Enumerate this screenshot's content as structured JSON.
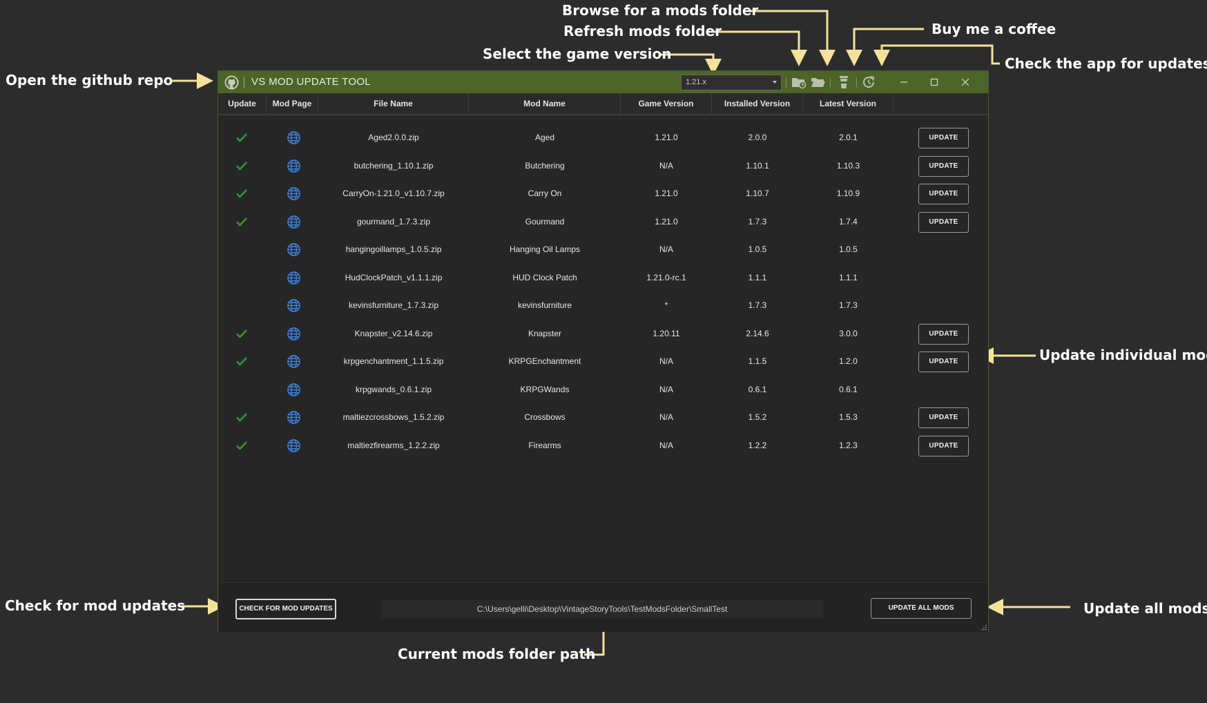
{
  "annotations": {
    "github": "Open the github repo",
    "game_version": "Select the game version",
    "refresh": "Refresh mods folder",
    "browse": "Browse for a mods folder",
    "coffee": "Buy me a coffee",
    "app_updates": "Check the app for updates",
    "individual": "Update individual mod",
    "check_mods": "Check for mod updates",
    "update_all": "Update all mods",
    "path": "Current mods folder path"
  },
  "window": {
    "title": "VS MOD UPDATE TOOL",
    "selected_version": "1.21.x"
  },
  "table": {
    "headers": [
      "Update",
      "Mod Page",
      "File Name",
      "Mod Name",
      "Game Version",
      "Installed Version",
      "Latest Version"
    ],
    "update_label": "UPDATE",
    "rows": [
      {
        "checked": true,
        "file": "Aged2.0.0.zip",
        "name": "Aged",
        "game": "1.21.0",
        "installed": "2.0.0",
        "latest": "2.0.1",
        "has_update": true
      },
      {
        "checked": true,
        "file": "butchering_1.10.1.zip",
        "name": "Butchering",
        "game": "N/A",
        "installed": "1.10.1",
        "latest": "1.10.3",
        "has_update": true
      },
      {
        "checked": true,
        "file": "CarryOn-1.21.0_v1.10.7.zip",
        "name": "Carry On",
        "game": "1.21.0",
        "installed": "1.10.7",
        "latest": "1.10.9",
        "has_update": true
      },
      {
        "checked": true,
        "file": "gourmand_1.7.3.zip",
        "name": "Gourmand",
        "game": "1.21.0",
        "installed": "1.7.3",
        "latest": "1.7.4",
        "has_update": true
      },
      {
        "checked": false,
        "file": "hangingoillamps_1.0.5.zip",
        "name": "Hanging Oil Lamps",
        "game": "N/A",
        "installed": "1.0.5",
        "latest": "1.0.5",
        "has_update": false
      },
      {
        "checked": false,
        "file": "HudClockPatch_v1.1.1.zip",
        "name": "HUD Clock Patch",
        "game": "1.21.0-rc.1",
        "installed": "1.1.1",
        "latest": "1.1.1",
        "has_update": false
      },
      {
        "checked": false,
        "file": "kevinsfurniture_1.7.3.zip",
        "name": "kevinsfurniture",
        "game": "*",
        "installed": "1.7.3",
        "latest": "1.7.3",
        "has_update": false
      },
      {
        "checked": true,
        "file": "Knapster_v2.14.6.zip",
        "name": "Knapster",
        "game": "1.20.11",
        "installed": "2.14.6",
        "latest": "3.0.0",
        "has_update": true
      },
      {
        "checked": true,
        "file": "krpgenchantment_1.1.5.zip",
        "name": "KRPGEnchantment",
        "game": "N/A",
        "installed": "1.1.5",
        "latest": "1.2.0",
        "has_update": true
      },
      {
        "checked": false,
        "file": "krpgwands_0.6.1.zip",
        "name": "KRPGWands",
        "game": "N/A",
        "installed": "0.6.1",
        "latest": "0.6.1",
        "has_update": false
      },
      {
        "checked": true,
        "file": "maltiezcrossbows_1.5.2.zip",
        "name": "Crossbows",
        "game": "N/A",
        "installed": "1.5.2",
        "latest": "1.5.3",
        "has_update": true
      },
      {
        "checked": true,
        "file": "maltiezfirearms_1.2.2.zip",
        "name": "Firearms",
        "game": "N/A",
        "installed": "1.2.2",
        "latest": "1.2.3",
        "has_update": true
      }
    ]
  },
  "footer": {
    "check_label": "CHECK FOR MOD UPDATES",
    "path": "C:\\Users\\gelli\\Desktop\\VintageStoryTools\\TestModsFolder\\SmallTest",
    "update_all_label": "UPDATE ALL MODS"
  },
  "colors": {
    "titlebar": "#4d6428",
    "check": "#2f9a2f",
    "globe": "#3d7fd6",
    "arrow": "#f5e29a"
  },
  "icons": [
    "github-icon",
    "refresh-folder-icon",
    "open-folder-icon",
    "coffee-cup-icon",
    "refresh-app-icon",
    "minimize-icon",
    "maximize-icon",
    "close-icon",
    "checkmark-icon",
    "globe-icon",
    "resize-grip-icon"
  ]
}
